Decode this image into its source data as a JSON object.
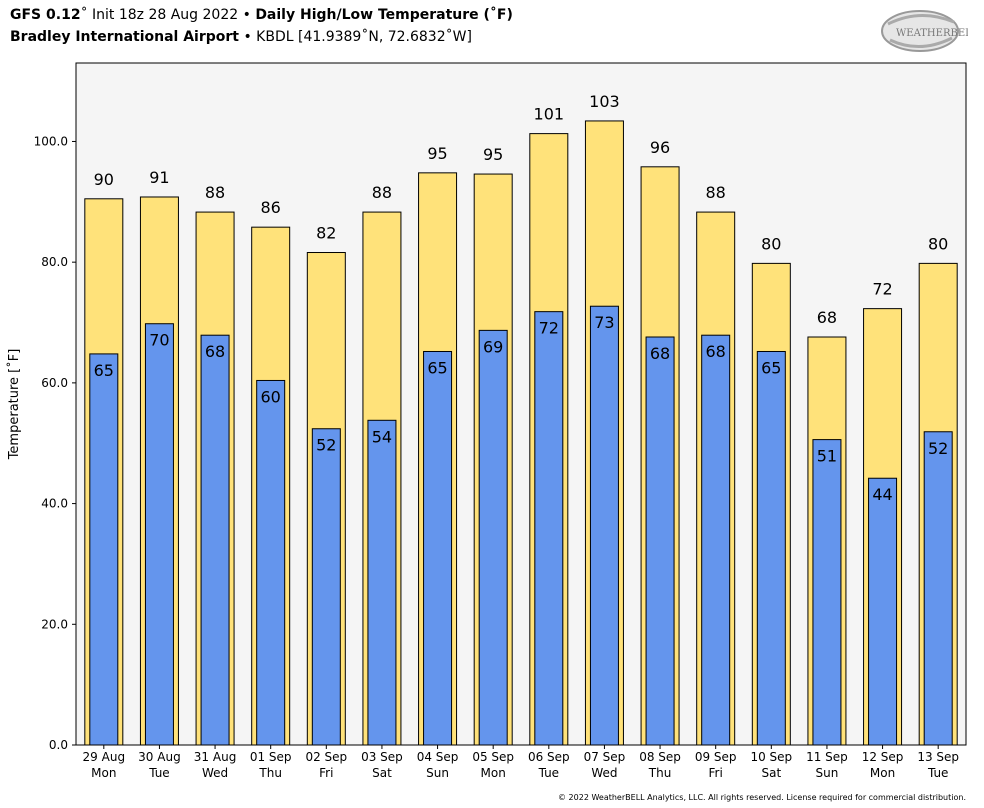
{
  "header": {
    "line1_model": "GFS 0.12",
    "line1_deg": "˚",
    "line1_init": " Init 18z 28 Aug 2022",
    "line1_sep": " • ",
    "line1_title": "Daily High/Low Temperature (˚F)",
    "line2_station": "Bradley International Airport",
    "line2_sep": " • ",
    "line2_info": "KBDL [41.9389˚N, 72.6832˚W]"
  },
  "logo": {
    "text": "WEATHERBELL"
  },
  "footer": {
    "text": "© 2022 WeatherBELL Analytics, LLC. All rights reserved. License required for commercial distribution."
  },
  "chart_data": {
    "type": "bar",
    "title": "Daily High/Low Temperature (˚F)",
    "ylabel": "Temperature [˚F]",
    "ylim": [
      0,
      113
    ],
    "yticks": [
      "0.0",
      "20.0",
      "40.0",
      "60.0",
      "80.0",
      "100.0"
    ],
    "ytick_values": [
      0,
      20,
      40,
      60,
      80,
      100
    ],
    "grid": false,
    "categories_date": [
      "29 Aug",
      "30 Aug",
      "31 Aug",
      "01 Sep",
      "02 Sep",
      "03 Sep",
      "04 Sep",
      "05 Sep",
      "06 Sep",
      "07 Sep",
      "08 Sep",
      "09 Sep",
      "10 Sep",
      "11 Sep",
      "12 Sep",
      "13 Sep"
    ],
    "categories_day": [
      "Mon",
      "Tue",
      "Wed",
      "Thu",
      "Fri",
      "Sat",
      "Sun",
      "Mon",
      "Tue",
      "Wed",
      "Thu",
      "Fri",
      "Sat",
      "Sun",
      "Mon",
      "Tue"
    ],
    "series": [
      {
        "values": [
          90.5,
          90.8,
          88.3,
          85.8,
          81.6,
          88.3,
          94.8,
          94.6,
          101.3,
          103.4,
          95.8,
          88.3,
          79.8,
          67.6,
          72.3,
          79.8
        ],
        "labels": [
          "90",
          "91",
          "88",
          "86",
          "82",
          "88",
          "95",
          "95",
          "101",
          "103",
          "96",
          "88",
          "80",
          "68",
          "72",
          "80"
        ],
        "color": "#ffe27a"
      },
      {
        "values": [
          64.8,
          69.8,
          67.9,
          60.4,
          52.4,
          53.8,
          65.2,
          68.7,
          71.8,
          72.7,
          67.6,
          67.9,
          65.2,
          50.6,
          44.2,
          51.9
        ],
        "labels": [
          "65",
          "70",
          "68",
          "60",
          "52",
          "54",
          "65",
          "69",
          "72",
          "73",
          "68",
          "68",
          "65",
          "51",
          "44",
          "52"
        ],
        "color": "#6495ed"
      }
    ],
    "plot_background": "#f5f5f5"
  }
}
